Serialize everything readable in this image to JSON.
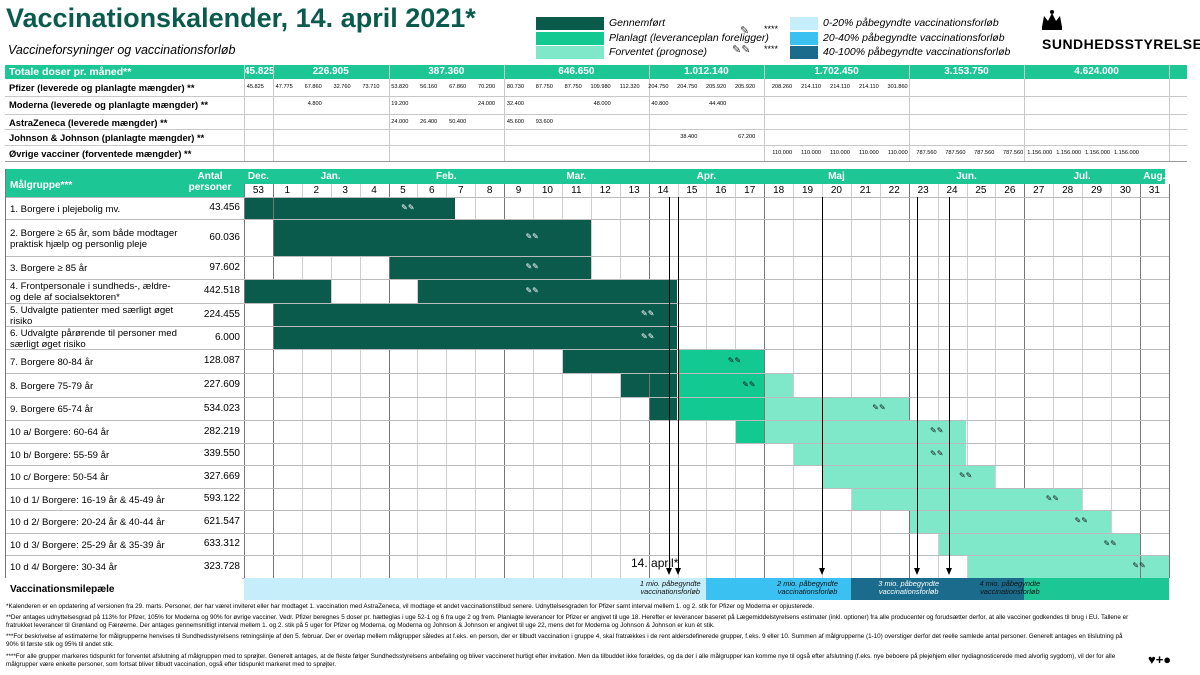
{
  "header": {
    "title": "Vaccinationskalender, 14. april 2021*",
    "subtitle": "Vaccineforsyninger og vaccinationsforløb",
    "logo_text": "SUNDHEDSSTYRELSEN"
  },
  "legend": {
    "items": [
      {
        "label": "Gennemført",
        "color": "#0b5b4d"
      },
      {
        "label": "Planlagt (leveranceplan foreligger)",
        "color": "#12c991"
      },
      {
        "label": "Forventet (prognose)",
        "color": "#7fe8c8"
      }
    ],
    "stars": [
      "****",
      "****"
    ],
    "milestones": [
      {
        "label": "0-20% påbegyndte vaccinationsforløb",
        "color": "#c6eefa"
      },
      {
        "label": "20-40% påbegyndte vaccinationsforløb",
        "color": "#3bc1f1"
      },
      {
        "label": "40-100% påbegyndte vaccinationsforløb",
        "color": "#1b6c8c"
      }
    ]
  },
  "supply": {
    "total_label": "Totale doser pr. måned**",
    "totals": [
      "45.825",
      "226.905",
      "387.360",
      "646.650",
      "1.012.140",
      "1.702.450",
      "3.153.750",
      "4.624.000"
    ],
    "rows": [
      {
        "label": "Pfizer (leverede og planlagte mængder) **",
        "values": [
          "45.825",
          "47.775",
          "67.860",
          "32.760",
          "73.710",
          "53.820",
          "56.160",
          "67.860",
          "70.200",
          "80.730",
          "87.750",
          "87.750",
          "109.980",
          "112.320",
          "204.750",
          "204.750",
          "205.920",
          "205.920",
          "208.260",
          "214.110",
          "214.110",
          "214.110",
          "301.860",
          "",
          "",
          "",
          "",
          "",
          "",
          "",
          ""
        ]
      },
      {
        "label": "Moderna (leverede og planlagte mængder) **",
        "values": [
          "",
          "",
          "4.800",
          "",
          "",
          "19.200",
          "",
          "",
          "24.000",
          "32.400",
          "",
          "",
          "48.000",
          "",
          "40.800",
          "",
          "44.400",
          "",
          "",
          "",
          "",
          "",
          "",
          "",
          "",
          "",
          "",
          "",
          "",
          "",
          ""
        ]
      },
      {
        "label": "AstraZeneca (leverede mængder) **",
        "values": [
          "",
          "",
          "",
          "",
          "",
          "24.000",
          "26.400",
          "50.400",
          "",
          "45.600",
          "93.600",
          "",
          "",
          "",
          "",
          "",
          "",
          "",
          "",
          "",
          "",
          "",
          "",
          "",
          "",
          "",
          "",
          "",
          "",
          "",
          ""
        ]
      },
      {
        "label": "Johnson & Johnson (planlagte mængder) **",
        "values": [
          "",
          "",
          "",
          "",
          "",
          "",
          "",
          "",
          "",
          "",
          "",
          "",
          "",
          "",
          "",
          "38.400",
          "",
          "67.200",
          "",
          "",
          "",
          "",
          "",
          "",
          "",
          "",
          "",
          "",
          "",
          "",
          ""
        ]
      },
      {
        "label": "Øvrige vacciner (forventede mængder) **",
        "values": [
          "",
          "",
          "",
          "",
          "",
          "",
          "",
          "",
          "",
          "",
          "",
          "",
          "",
          "",
          "",
          "",
          "",
          "",
          "110.000",
          "110.000",
          "110.000",
          "110.000",
          "110.000",
          "787.560",
          "787.560",
          "787.560",
          "787.560",
          "1.156.000",
          "1.156.000",
          "1.156.000",
          "1.156.000"
        ]
      }
    ]
  },
  "schedule": {
    "group_header": "Målgruppe***",
    "count_header": "Antal personer",
    "months": [
      "Dec.",
      "Jan.",
      "Feb.",
      "Mar.",
      "Apr.",
      "Maj",
      "Jun.",
      "Jul.",
      "Aug."
    ],
    "weeks": [
      "53",
      "1",
      "2",
      "3",
      "4",
      "5",
      "6",
      "7",
      "8",
      "9",
      "10",
      "11",
      "12",
      "13",
      "14",
      "15",
      "16",
      "17",
      "18",
      "19",
      "20",
      "21",
      "22",
      "23",
      "24",
      "25",
      "26",
      "27",
      "28",
      "29",
      "30",
      "31"
    ],
    "groups": [
      {
        "name": "1. Borgere i plejebolig mv.",
        "count": "43.456"
      },
      {
        "name": "2. Borgere ≥ 65 år, som både modtager praktisk hjælp og personlig pleje",
        "count": "60.036"
      },
      {
        "name": "3. Borgere ≥ 85 år",
        "count": "97.602"
      },
      {
        "name": "4. Frontpersonale i sundheds-, ældre- og dele af socialsektoren*",
        "count": "442.518"
      },
      {
        "name": "5. Udvalgte patienter med særligt øget risiko",
        "count": "224.455"
      },
      {
        "name": "6. Udvalgte pårørende til personer med særligt øget risiko",
        "count": "6.000"
      },
      {
        "name": "7. Borgere 80-84 år",
        "count": "128.087"
      },
      {
        "name": "8. Borgere 75-79 år",
        "count": "227.609"
      },
      {
        "name": "9. Borgere 65-74 år",
        "count": "534.023"
      },
      {
        "name": "10 a/ Borgere: 60-64 år",
        "count": "282.219"
      },
      {
        "name": "10 b/ Borgere: 55-59 år",
        "count": "339.550"
      },
      {
        "name": "10 c/ Borgere: 50-54 år",
        "count": "327.669"
      },
      {
        "name": "10 d 1/ Borgere: 16-19 år & 45-49 år",
        "count": "593.122"
      },
      {
        "name": "10 d 2/ Borgere: 20-24 år & 40-44 år",
        "count": "621.547"
      },
      {
        "name": "10 d 3/ Borgere: 25-29 år & 35-39 år",
        "count": "633.312"
      },
      {
        "name": "10 d 4/ Borgere: 30-34 år",
        "count": "323.728"
      }
    ],
    "today_label": "14. april*",
    "milestone_row_label": "Vaccinationsmilepæle",
    "milestones": [
      "1 mio. påbegyndte vaccinationsforløb",
      "2 mio. påbegyndte vaccinationsforløb",
      "3 mio. påbegyndte vaccinationsforløb",
      "4 mio. påbegyndte vaccinationsforløb"
    ]
  },
  "footnotes": [
    "*Kalenderen er en opdatering af versionen fra 29. marts. Personer, der har været inviteret eller har modtaget 1. vaccination med AstraZeneca, vil modtage et andet vaccinationstilbud senere. Udnyttelsesgraden for Pfizer samt interval mellem 1. og 2. stik for Pfizer og Moderna er opjusterede.",
    "**Der antages udnyttelsesgrad på 113% for Pfizer, 105% for Moderna og 90% for øvrige vacciner. Vedr. Pfizer beregnes 5 doser pr. hætteglas i uge 52-1 og 6 fra uge 2 og frem. Planlagte leverancer for Pfizer er angivet til uge 18. Herefter er leverancer baseret på Lægemiddelstyrelsens estimater (inkl. optioner) fra alle producenter og forudsætter derfor, at alle vacciner godkendes til brug i EU. Tallene er fratrukket leverancer til Grønland og Færøerne. Der antages gennemsnitligt interval mellem 1. og 2. stik på 5 uger for Pfizer og Moderna, og Moderna og Johnson & Johnson er angivet til uge 22, mens det for Moderna og Johnson & Johnson er kun ét stik.",
    "***For beskrivelse af estimaterne for målgrupperne henvises til Sundhedsstyrelsens retningslinje af den 5. februar. Der er overlap mellem målgrupper således at f.eks. en person, der er tilbudt vaccination i gruppe 4, skal fratrækkes i de rent aldersdefinerede grupper, f.eks. 9 eller 10. Summen af målgrupperne (1-10) overstiger derfor det reelle samlede antal personer. Generelt antages en tilslutning på 90% til første stik og 95% til andet stik.",
    "****For alle grupper markeres tidspunkt for forventet afslutning af målgruppen med to sprøjter. Generelt antages, at de fleste følger Sundhedsstyrelsens anbefaling og bliver vaccineret hurtigt efter invitation. Men da tilbuddet ikke forældes, og da der i alle målgrupper kan komme nye til også efter afslutning (f.eks. nye beboere på plejehjem eller nydiagnosticerede med alvorlig sygdom), vil der for alle målgrupper være enkelte personer, som fortsat bliver tilbudt vaccination, også efter tidspunkt markeret med to sprøjter."
  ],
  "colors": {
    "brand": "#0b5b4d",
    "header_green": "#1cc795",
    "done": "#0b5b4d",
    "planned": "#12c991",
    "forecast": "#7fe8c8"
  }
}
